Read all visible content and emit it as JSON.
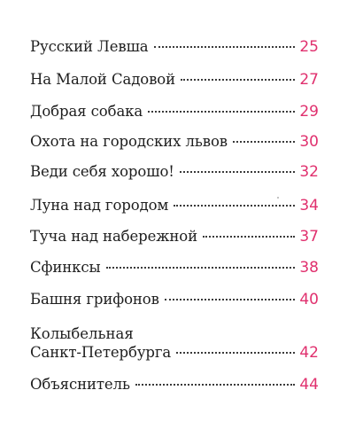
{
  "toc": {
    "entries": [
      {
        "title": "Русский Левша",
        "page": "25"
      },
      {
        "title": "На Малой Садовой",
        "page": "27"
      },
      {
        "title": "Добрая собака",
        "page": "29"
      },
      {
        "title": "Охота на городских львов",
        "page": "30"
      },
      {
        "title": "Веди себя хорошо!",
        "page": "32"
      },
      {
        "title": "Луна над городом",
        "page": "34"
      },
      {
        "title": "Туча над набережной",
        "page": "37"
      },
      {
        "title": "Сфинксы",
        "page": "38"
      },
      {
        "title": "Башня грифонов",
        "page": "40"
      },
      {
        "title_line1": "Колыбельная",
        "title": "Санкт-Петербурга",
        "page": "42"
      },
      {
        "title": "Объяснитель",
        "page": "44"
      }
    ]
  },
  "colors": {
    "page_number": "#e0306e",
    "text": "#1e1e1e"
  }
}
